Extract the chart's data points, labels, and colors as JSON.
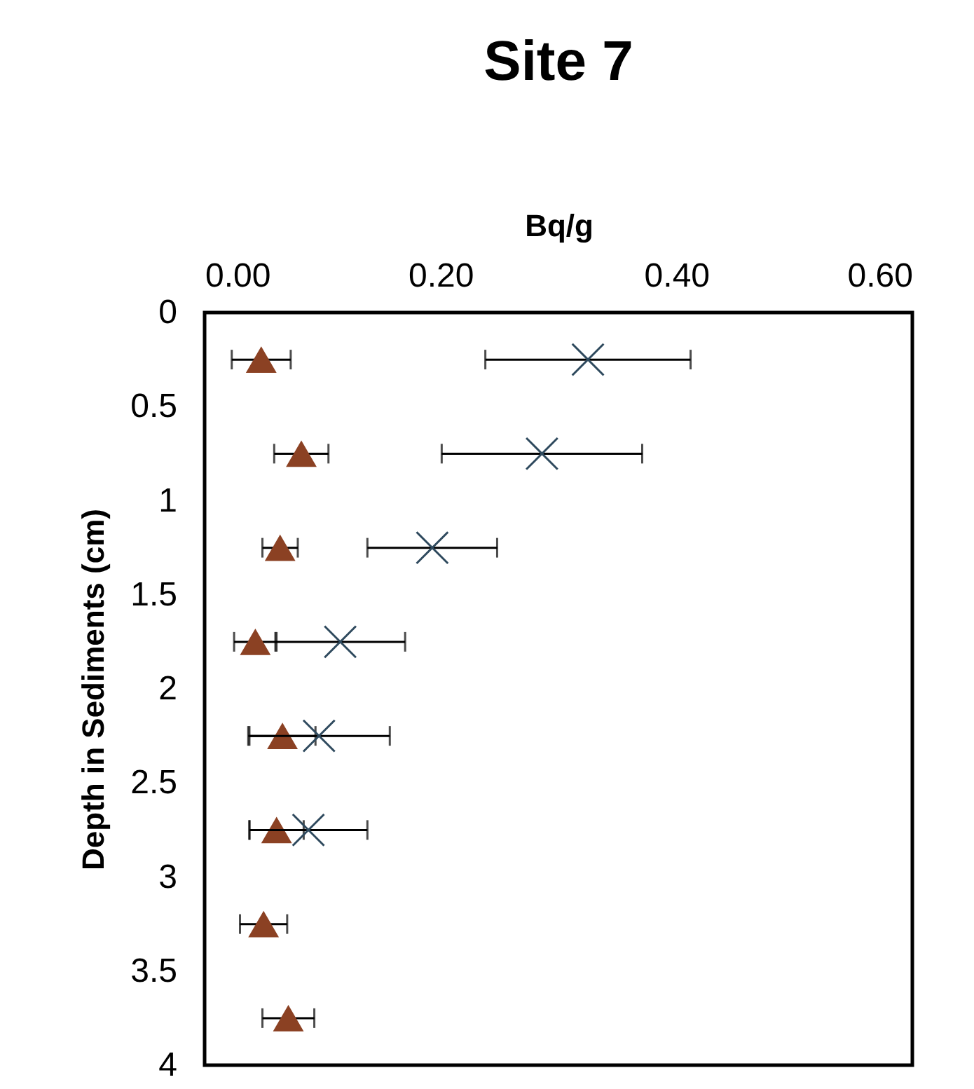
{
  "chart_data": {
    "type": "scatter",
    "title": "Site 7",
    "xlabel": "Bq/g",
    "ylabel": "Depth in Sediments (cm)",
    "xlim": [
      0,
      0.6
    ],
    "xticks": [
      {
        "value": 0,
        "label": "0.00"
      },
      {
        "value": 0.2,
        "label": "0.20"
      },
      {
        "value": 0.4,
        "label": "0.40"
      },
      {
        "value": 0.6,
        "label": "0.60"
      }
    ],
    "ylim": [
      4,
      0
    ],
    "yticks": [
      0,
      0.5,
      1,
      1.5,
      2,
      2.5,
      3,
      3.5,
      4
    ],
    "grid": false,
    "series": [
      {
        "color": "#8b4123",
        "marker": "triangle",
        "x": [
          0.048,
          0.082,
          0.064,
          0.043,
          0.066,
          0.061,
          0.05,
          0.071
        ],
        "values": [
          0.25,
          0.75,
          1.25,
          1.75,
          2.25,
          2.75,
          3.25,
          3.75
        ],
        "xerrors": [
          0.025,
          0.023,
          0.015,
          0.018,
          0.028,
          0.023,
          0.02,
          0.022
        ]
      },
      {
        "color": "#2f4a5e",
        "marker": "cross",
        "x": [
          0.325,
          0.286,
          0.193,
          0.115,
          0.097,
          0.088
        ],
        "values": [
          0.25,
          0.75,
          1.25,
          1.75,
          2.25,
          2.75
        ],
        "xerrors": [
          0.087,
          0.085,
          0.055,
          0.055,
          0.06,
          0.05
        ]
      }
    ]
  }
}
